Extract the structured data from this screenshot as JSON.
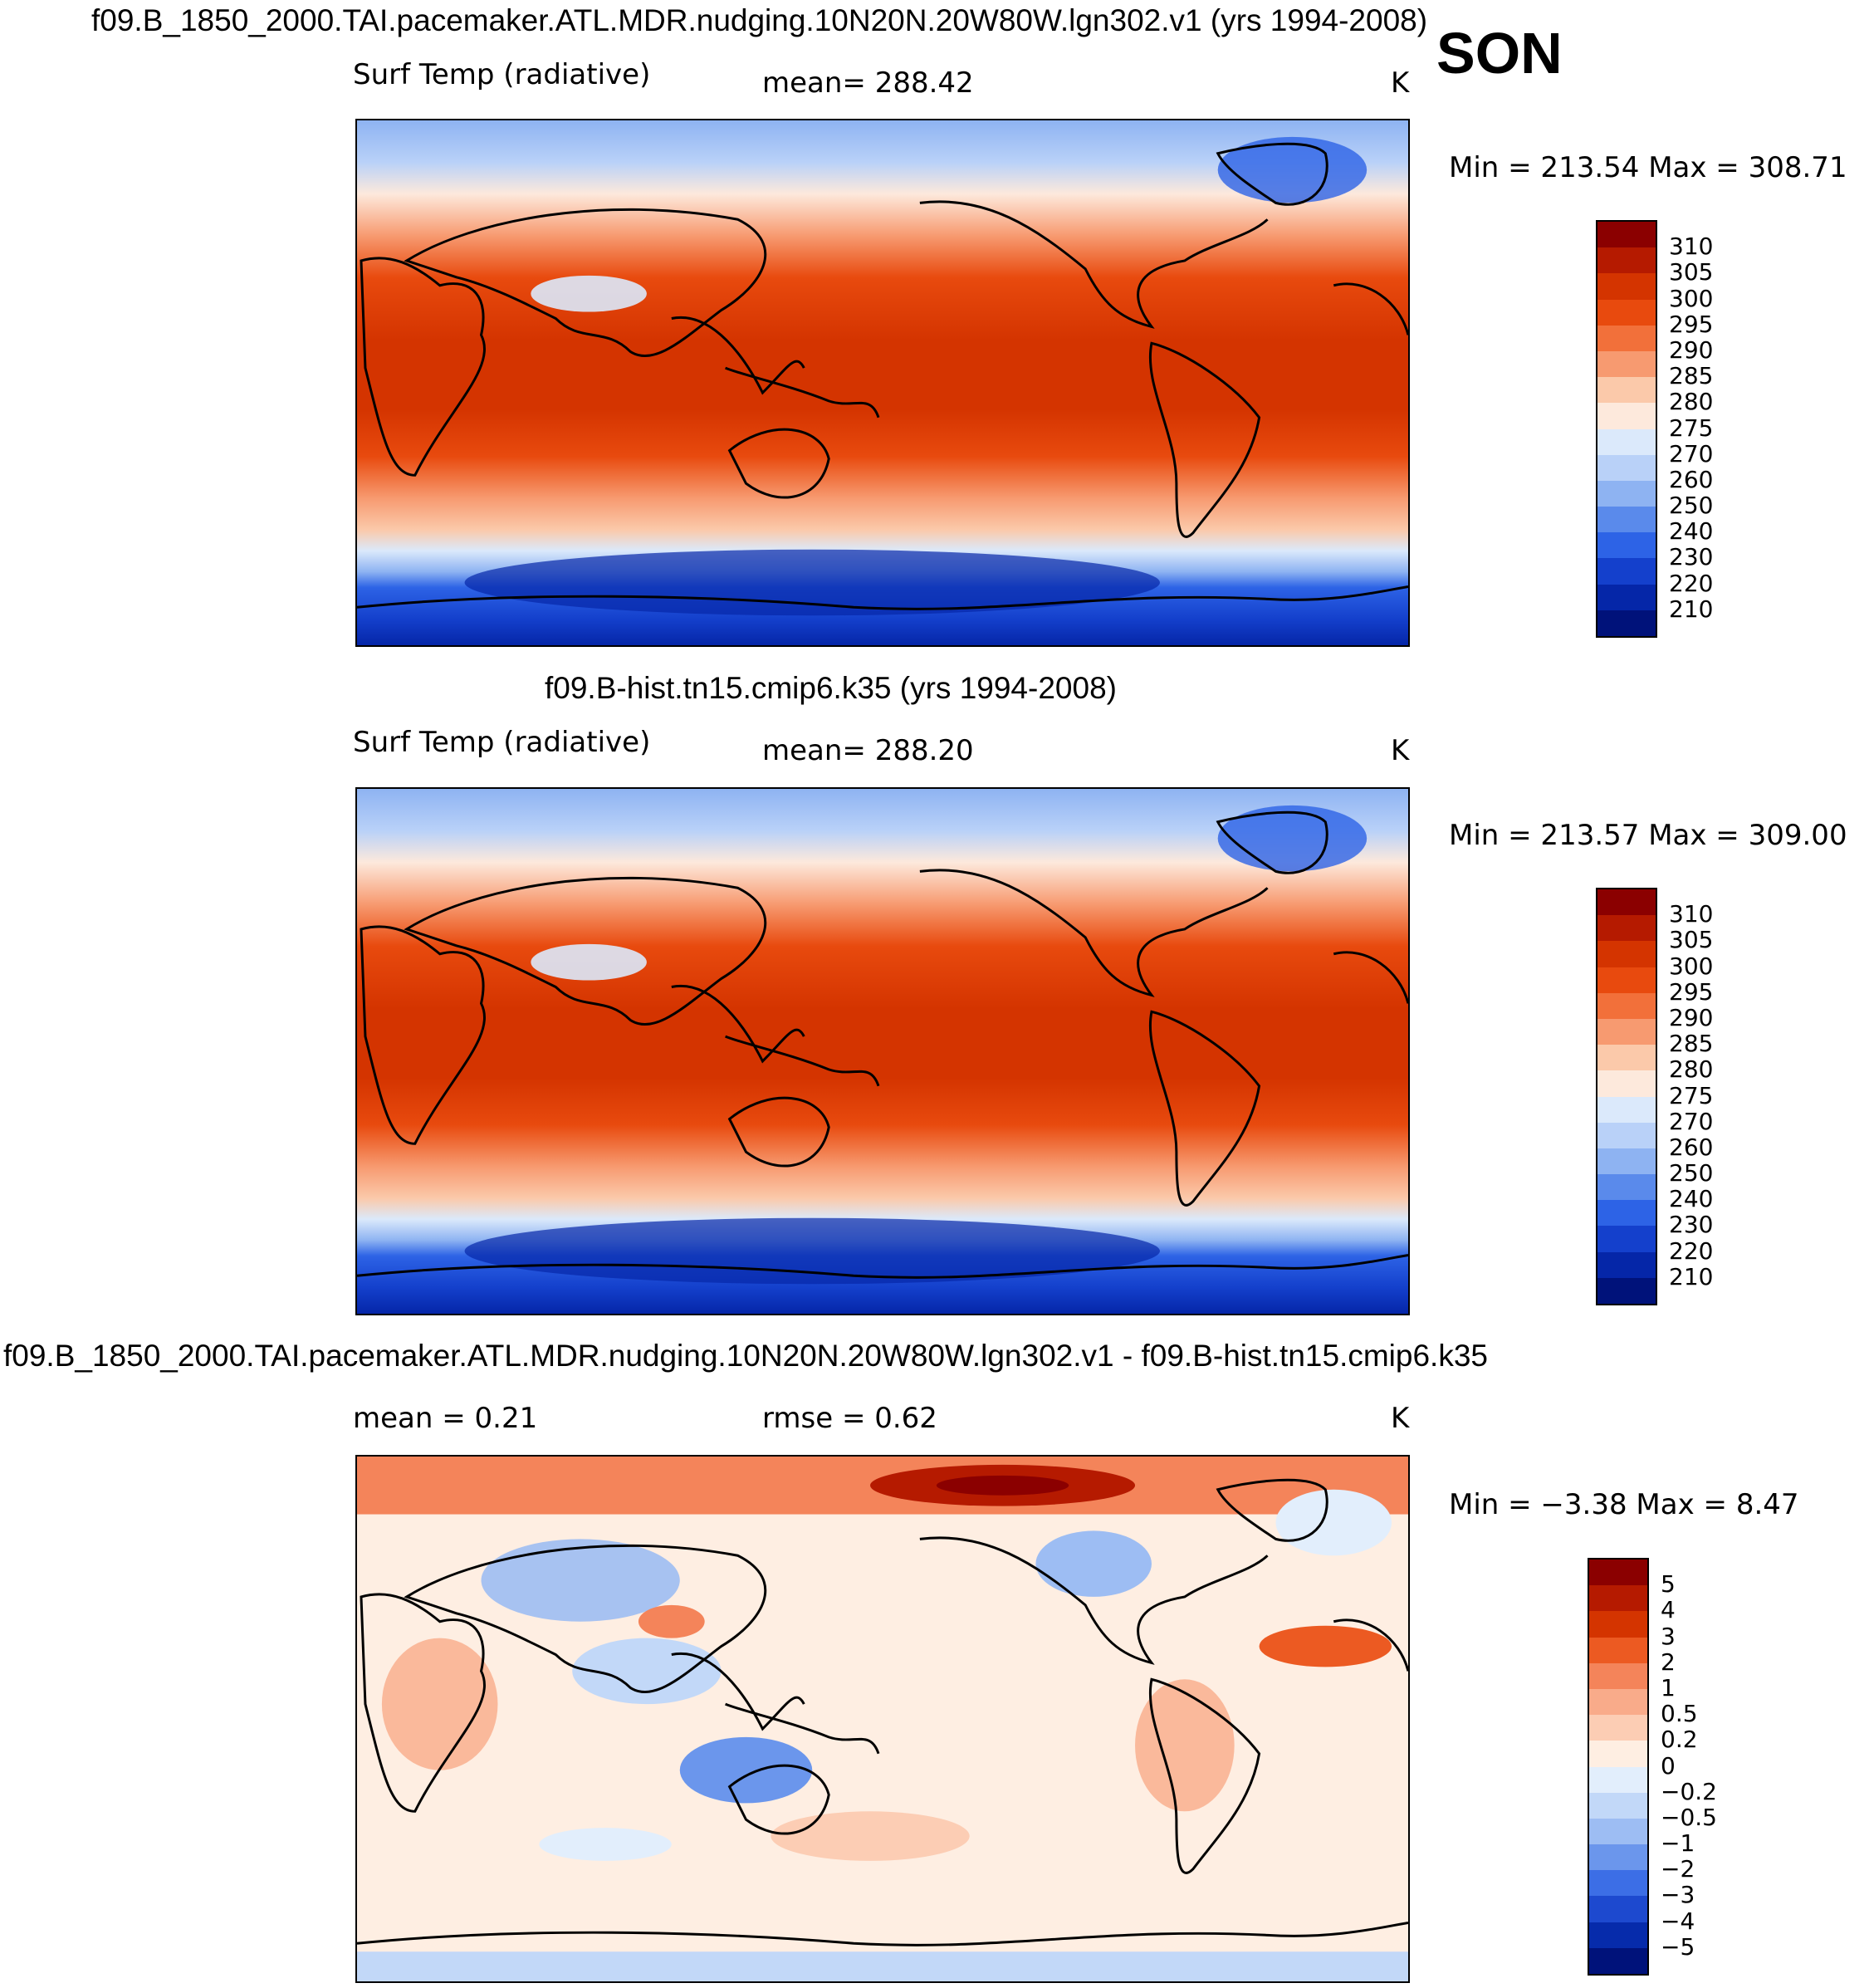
{
  "season": "SON",
  "units": "K",
  "panels": [
    {
      "header": "f09.B_1850_2000.TAI.pacemaker.ATL.MDR.nudging.10N20N.20W80W.lgn302.v1 (yrs 1994-2008)",
      "variable": "Surf Temp (radiative)",
      "stat1": "mean= 288.42",
      "stat2": "",
      "units": "K",
      "minmax": "Min = 213.54 Max = 308.71",
      "colorbar": {
        "labels": [
          "310",
          "305",
          "300",
          "295",
          "290",
          "285",
          "280",
          "275",
          "270",
          "260",
          "250",
          "240",
          "230",
          "220",
          "210"
        ],
        "colors": [
          "#8b0000",
          "#b51a00",
          "#d43400",
          "#e84a0e",
          "#f2703a",
          "#f79a70",
          "#fbc9aa",
          "#fde9dc",
          "#dbe9fb",
          "#b9d1f8",
          "#8eb3f2",
          "#5a8aeb",
          "#2d63e6",
          "#1440cc",
          "#0526a8",
          "#00127a"
        ]
      }
    },
    {
      "header": "f09.B-hist.tn15.cmip6.k35 (yrs 1994-2008)",
      "variable": "Surf Temp (radiative)",
      "stat1": "mean= 288.20",
      "stat2": "",
      "units": "K",
      "minmax": "Min = 213.57 Max = 309.00",
      "colorbar": {
        "labels": [
          "310",
          "305",
          "300",
          "295",
          "290",
          "285",
          "280",
          "275",
          "270",
          "260",
          "250",
          "240",
          "230",
          "220",
          "210"
        ],
        "colors": [
          "#8b0000",
          "#b51a00",
          "#d43400",
          "#e84a0e",
          "#f2703a",
          "#f79a70",
          "#fbc9aa",
          "#fde9dc",
          "#dbe9fb",
          "#b9d1f8",
          "#8eb3f2",
          "#5a8aeb",
          "#2d63e6",
          "#1440cc",
          "#0526a8",
          "#00127a"
        ]
      }
    },
    {
      "header": "f09.B_1850_2000.TAI.pacemaker.ATL.MDR.nudging.10N20N.20W80W.lgn302.v1 - f09.B-hist.tn15.cmip6.k35",
      "variable": "mean =     0.21",
      "stat1": "rmse =     0.62",
      "stat2": "",
      "units": "K",
      "minmax": "Min =  −3.38 Max =     8.47",
      "colorbar": {
        "labels": [
          "5",
          "4",
          "3",
          "2",
          "1",
          "0.5",
          "0.2",
          "0",
          "−0.2",
          "−0.5",
          "−1",
          "−2",
          "−3",
          "−4",
          "−5"
        ],
        "colors": [
          "#8b0000",
          "#b51a00",
          "#d43400",
          "#ec5a22",
          "#f4845a",
          "#f9ab8a",
          "#fccdb4",
          "#feeee2",
          "#e2eefc",
          "#c2d8f8",
          "#9dbdf3",
          "#6b96ec",
          "#3c6ee6",
          "#1d49cf",
          "#062bab",
          "#00127a"
        ]
      }
    }
  ]
}
